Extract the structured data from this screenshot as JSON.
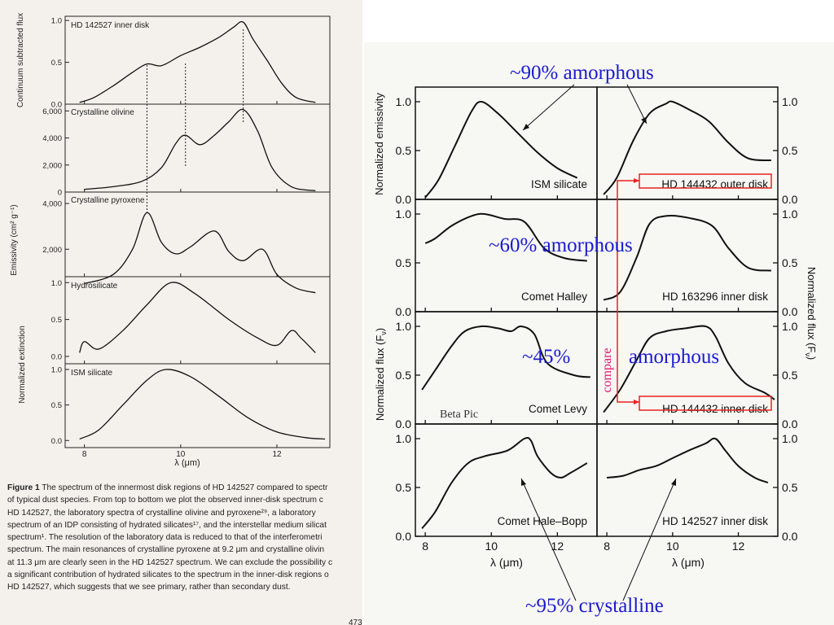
{
  "left_figure": {
    "panels": [
      {
        "label": "HD 142527 inner disk",
        "ylabel": "Continuum subtracted flux",
        "yticks": [
          "0.0",
          "0.5",
          "1.0"
        ]
      },
      {
        "label": "Crystalline olivine",
        "ylabel": "",
        "yticks": [
          "0",
          "2,000",
          "4,000",
          "6,000"
        ]
      },
      {
        "label": "Crystalline pyroxene",
        "ylabel": "",
        "yticks": [
          "2,000",
          "4,000"
        ]
      },
      {
        "label": "Hydrosilicate",
        "ylabel": "",
        "yticks": [
          "0.0",
          "0.5",
          "1.0"
        ]
      },
      {
        "label": "ISM silicate",
        "ylabel": "",
        "yticks": [
          "0.0",
          "0.5",
          "1.0"
        ]
      }
    ],
    "shared_ylabels": {
      "emissivity": "Emissivity (cm² g⁻¹)",
      "extinction": "Normalized extinction"
    },
    "xticks": [
      "8",
      "10",
      "12"
    ],
    "xlabel": "λ (μm)",
    "caption": {
      "title": "Figure 1",
      "lines": [
        "The spectrum of the innermost disk regions of HD 142527 compared to spectr",
        "of typical dust species. From top to bottom we plot the observed inner-disk spectrum c",
        "HD 142527, the laboratory spectra of crystalline olivine and pyroxene²⁹, a laboratory",
        "spectrum of an IDP consisting of hydrated silicates¹⁷, and the interstellar medium silicat",
        "spectrum¹. The resolution of the laboratory data is reduced to that of the interferometri",
        "spectrum. The main resonances of crystalline pyroxene at 9.2 μm and crystalline olivin",
        "at 11.3 μm are clearly seen in the HD 142527 spectrum. We can exclude the possibility c",
        "a significant contribution of hydrated silicates to the spectrum in the inner-disk regions o",
        "HD 142527, which suggests that we see primary, rather than secondary dust."
      ]
    },
    "page_number": "473"
  },
  "right_figure": {
    "panel_labels": [
      "ISM silicate",
      "HD 144432 outer disk",
      "Comet Halley",
      "HD 163296 inner disk",
      "Comet Levy",
      "HD 144432 inner disk",
      "Comet Hale–Bopp",
      "HD 142527 inner disk"
    ],
    "left_ylabel_top": "Normalized emissivity",
    "left_ylabel_bottom": "Normalized flux (F",
    "right_ylabel": "Normalized flux (F",
    "ylabel_subscript": "ν",
    "yticks_row": [
      "0.0",
      "0.5",
      "1.0"
    ],
    "xticks": [
      "8",
      "10",
      "12"
    ],
    "xlabel": "λ (μm)"
  },
  "annotations": {
    "a90": "~90% amorphous",
    "a60": "~60% amorphous",
    "a45_prefix": "~45%",
    "a45_suffix": "amorphous",
    "a95": "~95% crystalline",
    "compare": "compare",
    "beta_pic": "Beta Pic",
    "colors": {
      "annotation": "#1a1ad0",
      "compare": "#e0196e",
      "box": "#e8231e"
    }
  },
  "chart_data": [
    {
      "type": "line",
      "title": "Figure 1",
      "xlabel": "λ (μm)",
      "xlim": [
        7.6,
        13.1
      ],
      "series": [
        {
          "name": "HD 142527 inner disk",
          "x": [
            7.9,
            8.2,
            8.6,
            9.0,
            9.3,
            9.6,
            10.0,
            10.4,
            10.8,
            11.1,
            11.3,
            11.5,
            11.8,
            12.1,
            12.4,
            12.8
          ],
          "y": [
            0.02,
            0.08,
            0.22,
            0.38,
            0.48,
            0.46,
            0.58,
            0.68,
            0.8,
            0.92,
            0.98,
            0.78,
            0.52,
            0.25,
            0.08,
            0.02
          ]
        },
        {
          "name": "Crystalline olivine",
          "x": [
            8.0,
            8.6,
            9.2,
            9.6,
            9.9,
            10.1,
            10.4,
            10.7,
            11.0,
            11.3,
            11.6,
            11.9,
            12.3,
            12.8
          ],
          "y": [
            200,
            400,
            800,
            1800,
            3600,
            4200,
            3500,
            4200,
            5200,
            6100,
            4500,
            1800,
            400,
            100
          ]
        },
        {
          "name": "Crystalline pyroxene",
          "x": [
            8.0,
            8.6,
            9.0,
            9.3,
            9.6,
            9.9,
            10.2,
            10.7,
            11.0,
            11.3,
            11.7,
            12.0,
            12.4,
            12.8
          ],
          "y": [
            500,
            900,
            2000,
            3600,
            2300,
            1800,
            2100,
            2800,
            1900,
            1500,
            2000,
            900,
            300,
            100
          ]
        },
        {
          "name": "Hydrosilicate",
          "x": [
            7.9,
            8.0,
            8.3,
            8.8,
            9.3,
            9.8,
            10.3,
            11.0,
            11.6,
            12.0,
            12.3,
            12.5,
            12.8
          ],
          "y": [
            0.05,
            0.2,
            0.1,
            0.35,
            0.7,
            1.0,
            0.85,
            0.5,
            0.25,
            0.15,
            0.35,
            0.25,
            0.05
          ]
        },
        {
          "name": "ISM silicate",
          "x": [
            7.9,
            8.3,
            8.8,
            9.3,
            9.7,
            10.2,
            10.8,
            11.4,
            12.0,
            12.6,
            13.0
          ],
          "y": [
            0.02,
            0.15,
            0.5,
            0.85,
            1.0,
            0.9,
            0.62,
            0.32,
            0.12,
            0.04,
            0.02
          ]
        }
      ]
    },
    {
      "type": "line",
      "xlabel": "λ (μm)",
      "xlim": [
        7.7,
        13.2
      ],
      "ylim": [
        0,
        1.15
      ],
      "series": [
        {
          "name": "ISM silicate",
          "x": [
            8.0,
            8.4,
            8.9,
            9.4,
            9.7,
            10.2,
            10.8,
            11.4,
            12.0,
            12.6
          ],
          "y": [
            0.02,
            0.2,
            0.55,
            0.9,
            1.0,
            0.88,
            0.68,
            0.48,
            0.32,
            0.22
          ]
        },
        {
          "name": "HD 144432 outer disk",
          "x": [
            7.9,
            8.3,
            8.8,
            9.3,
            9.8,
            10.0,
            10.5,
            11.1,
            11.7,
            12.3,
            13.0
          ],
          "y": [
            0.05,
            0.22,
            0.6,
            0.88,
            0.98,
            1.0,
            0.92,
            0.8,
            0.58,
            0.42,
            0.4
          ]
        },
        {
          "name": "Comet Halley",
          "x": [
            8.0,
            8.3,
            8.8,
            9.4,
            9.8,
            10.4,
            11.0,
            11.6,
            12.2,
            12.9
          ],
          "y": [
            0.7,
            0.75,
            0.88,
            0.98,
            1.0,
            0.95,
            0.92,
            0.65,
            0.55,
            0.52
          ]
        },
        {
          "name": "HD 163296 inner disk",
          "x": [
            7.9,
            8.4,
            8.9,
            9.3,
            9.8,
            10.5,
            11.2,
            11.7,
            12.3,
            13.0
          ],
          "y": [
            0.12,
            0.2,
            0.55,
            0.9,
            0.98,
            0.96,
            0.88,
            0.65,
            0.45,
            0.42
          ]
        },
        {
          "name": "Comet Levy",
          "x": [
            7.9,
            8.3,
            8.8,
            9.2,
            9.7,
            10.2,
            10.6,
            10.9,
            11.3,
            11.7,
            12.5,
            13.0
          ],
          "y": [
            0.35,
            0.55,
            0.8,
            0.95,
            1.0,
            0.98,
            0.95,
            1.0,
            0.92,
            0.62,
            0.5,
            0.48
          ]
        },
        {
          "name": "HD 144432 inner disk",
          "x": [
            7.9,
            8.4,
            8.9,
            9.3,
            9.8,
            10.4,
            11.0,
            11.3,
            11.7,
            12.2,
            12.8,
            13.1
          ],
          "y": [
            0.12,
            0.35,
            0.65,
            0.88,
            0.95,
            0.98,
            1.0,
            0.9,
            0.62,
            0.42,
            0.32,
            0.25
          ]
        },
        {
          "name": "Comet Hale–Bopp",
          "x": [
            7.9,
            8.3,
            8.8,
            9.3,
            9.8,
            10.5,
            11.0,
            11.2,
            11.4,
            11.8,
            12.1,
            12.4,
            12.9
          ],
          "y": [
            0.08,
            0.25,
            0.55,
            0.75,
            0.82,
            0.88,
            1.0,
            0.98,
            0.82,
            0.65,
            0.6,
            0.65,
            0.75
          ]
        },
        {
          "name": "HD 142527 inner disk",
          "x": [
            8.0,
            8.5,
            9.0,
            9.5,
            10.0,
            10.5,
            11.0,
            11.3,
            11.6,
            12.0,
            12.5,
            12.9
          ],
          "y": [
            0.6,
            0.62,
            0.68,
            0.72,
            0.8,
            0.88,
            0.95,
            1.0,
            0.88,
            0.72,
            0.6,
            0.55
          ]
        }
      ]
    }
  ]
}
